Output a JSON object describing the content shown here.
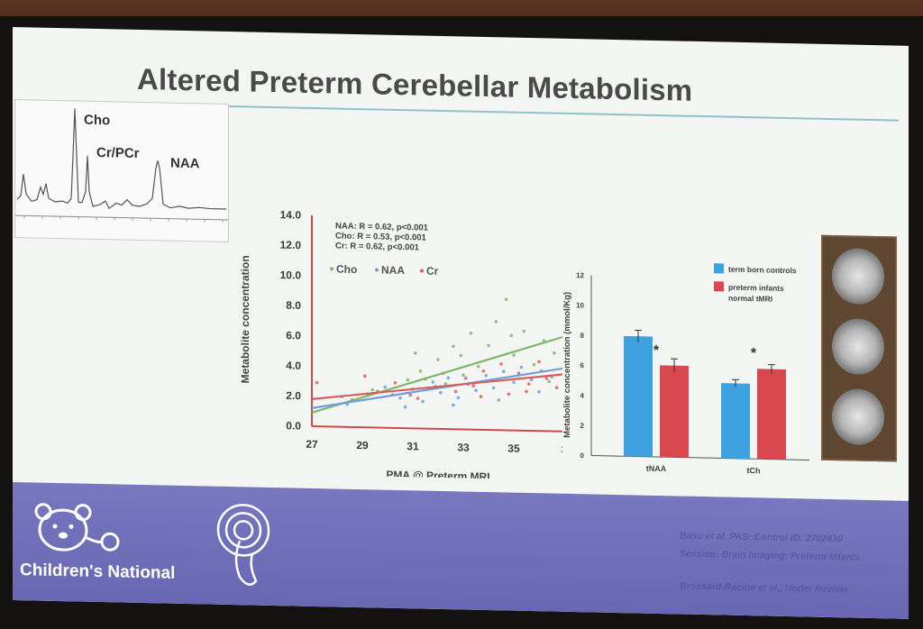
{
  "slide": {
    "title": "Altered Preterm Cerebellar Metabolism",
    "spectrum_labels": {
      "cho": "Cho",
      "cr_pcr": "Cr/PCr",
      "naa": "NAA"
    },
    "organization": "Children's National",
    "citations": [
      "Basu et al. PAS: Control ID: 2702430",
      "Session: Brain Imaging: Preterm Infants",
      "Brossard-Racine et al., Under Review"
    ]
  },
  "colors": {
    "cho": "#7fb86a",
    "naa": "#6f9fd8",
    "cr": "#d85e5e",
    "blue_bar": "#3fa2e0",
    "red_bar": "#d9474f",
    "axis": "#cc4b4b",
    "footer": "#6c6cb6"
  },
  "chart_data": [
    {
      "type": "scatter",
      "title": "",
      "xlabel": "PMA @ Preterm MRI",
      "ylabel": "Metabolite concentration",
      "xlim": [
        27,
        37
      ],
      "ylim": [
        0,
        14
      ],
      "x_ticks": [
        "27",
        "29",
        "31",
        "33",
        "35",
        "3"
      ],
      "y_ticks": [
        "0.0",
        "2.0",
        "4.0",
        "6.0",
        "8.0",
        "10.0",
        "12.0",
        "14.0"
      ],
      "stats": [
        "NAA: R = 0.62, p<0.001",
        "Cho: R = 0.53, p<0.001",
        "Cr: R = 0.62, p<0.001"
      ],
      "legend": [
        "Cho",
        "NAA",
        "Cr"
      ],
      "series": [
        {
          "name": "Cho",
          "fit": [
            [
              27,
              0.9
            ],
            [
              37,
              6.3
            ]
          ],
          "points": [
            [
              28.2,
              2.0
            ],
            [
              29.4,
              2.5
            ],
            [
              30.2,
              2.2
            ],
            [
              30.8,
              3.2
            ],
            [
              31.3,
              3.8
            ],
            [
              31.6,
              2.7
            ],
            [
              32.0,
              4.6
            ],
            [
              32.3,
              3.0
            ],
            [
              32.6,
              5.5
            ],
            [
              33.0,
              3.6
            ],
            [
              33.3,
              6.4
            ],
            [
              33.6,
              4.2
            ],
            [
              34.0,
              5.6
            ],
            [
              34.3,
              7.2
            ],
            [
              34.7,
              8.7
            ],
            [
              35.0,
              5.0
            ],
            [
              35.4,
              6.6
            ],
            [
              35.8,
              4.4
            ],
            [
              36.2,
              6.0
            ],
            [
              36.6,
              5.2
            ],
            [
              31.1,
              5.0
            ],
            [
              32.9,
              4.9
            ],
            [
              34.9,
              6.3
            ],
            [
              36.4,
              3.3
            ]
          ]
        },
        {
          "name": "NAA",
          "fit": [
            [
              27,
              1.2
            ],
            [
              37,
              4.2
            ]
          ],
          "points": [
            [
              28.4,
              1.5
            ],
            [
              29.2,
              2.2
            ],
            [
              29.9,
              2.7
            ],
            [
              30.5,
              2.0
            ],
            [
              31.0,
              2.6
            ],
            [
              31.4,
              1.8
            ],
            [
              31.8,
              3.1
            ],
            [
              32.1,
              2.4
            ],
            [
              32.4,
              3.4
            ],
            [
              32.8,
              2.1
            ],
            [
              33.2,
              3.0
            ],
            [
              33.5,
              2.6
            ],
            [
              33.9,
              3.6
            ],
            [
              34.2,
              2.8
            ],
            [
              34.6,
              3.9
            ],
            [
              35.0,
              3.2
            ],
            [
              35.3,
              4.2
            ],
            [
              35.7,
              3.4
            ],
            [
              36.1,
              4.0
            ],
            [
              36.5,
              3.6
            ],
            [
              30.7,
              1.4
            ],
            [
              32.6,
              1.6
            ],
            [
              34.4,
              2.0
            ],
            [
              36.0,
              2.6
            ]
          ]
        },
        {
          "name": "Cr",
          "fit": [
            [
              27,
              1.8
            ],
            [
              37,
              3.8
            ]
          ],
          "points": [
            [
              27.2,
              2.9
            ],
            [
              28.6,
              1.8
            ],
            [
              29.6,
              2.4
            ],
            [
              30.3,
              3.0
            ],
            [
              30.9,
              2.2
            ],
            [
              31.5,
              3.3
            ],
            [
              31.9,
              2.8
            ],
            [
              32.2,
              3.7
            ],
            [
              32.7,
              2.5
            ],
            [
              33.1,
              3.4
            ],
            [
              33.4,
              2.9
            ],
            [
              33.8,
              3.9
            ],
            [
              34.1,
              3.3
            ],
            [
              34.5,
              4.4
            ],
            [
              34.8,
              2.4
            ],
            [
              35.2,
              3.8
            ],
            [
              35.6,
              3.1
            ],
            [
              36.0,
              4.6
            ],
            [
              36.3,
              3.5
            ],
            [
              36.7,
              2.9
            ],
            [
              29.1,
              3.4
            ],
            [
              31.2,
              2.0
            ],
            [
              33.7,
              2.2
            ],
            [
              35.5,
              2.6
            ]
          ]
        }
      ]
    },
    {
      "type": "bar",
      "ylabel": "Metabolite concentration (mmol/Kg)",
      "ylim": [
        0,
        12
      ],
      "y_ticks": [
        "0",
        "2",
        "4",
        "6",
        "8",
        "10",
        "12"
      ],
      "categories": [
        "tNAA",
        "tCh"
      ],
      "significance": [
        "*",
        "*"
      ],
      "series": [
        {
          "name": "term born controls",
          "values": [
            8.0,
            5.0
          ],
          "errors": [
            0.4,
            0.25
          ]
        },
        {
          "name": "preterm infants normal tMRI",
          "values": [
            6.1,
            6.0
          ],
          "errors": [
            0.45,
            0.3
          ]
        }
      ]
    }
  ]
}
